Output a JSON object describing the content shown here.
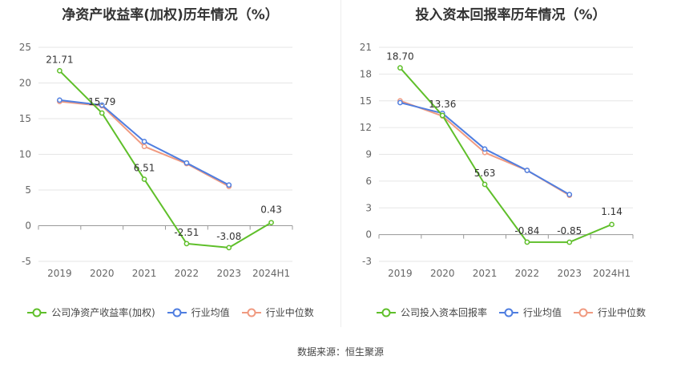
{
  "source": "数据来源：恒生聚源",
  "chart_data": [
    {
      "type": "line",
      "title": "净资产收益率(加权)历年情况（%）",
      "categories": [
        "2019",
        "2020",
        "2021",
        "2022",
        "2023",
        "2024H1"
      ],
      "ylim": [
        -5,
        25
      ],
      "yticks": [
        -5,
        0,
        5,
        10,
        15,
        20,
        25
      ],
      "grid": true,
      "legend_position": "bottom",
      "series": [
        {
          "name": "公司净资产收益率(加权)",
          "color": "#5fbf2a",
          "values": [
            21.71,
            15.79,
            6.51,
            -2.51,
            -3.08,
            0.43
          ],
          "labels": [
            "21.71",
            "15.79",
            "6.51",
            "-2.51",
            "-3.08",
            "0.43"
          ]
        },
        {
          "name": "行业均值",
          "color": "#4f7ee0",
          "values": [
            17.6,
            16.9,
            11.8,
            8.8,
            5.7,
            null
          ]
        },
        {
          "name": "行业中位数",
          "color": "#f09a80",
          "values": [
            17.4,
            16.8,
            11.1,
            8.7,
            5.5,
            null
          ]
        }
      ]
    },
    {
      "type": "line",
      "title": "投入资本回报率历年情况（%）",
      "categories": [
        "2019",
        "2020",
        "2021",
        "2022",
        "2023",
        "2024H1"
      ],
      "ylim": [
        -3,
        21
      ],
      "yticks": [
        -3,
        0,
        3,
        6,
        9,
        12,
        15,
        18,
        21
      ],
      "grid": true,
      "legend_position": "bottom",
      "series": [
        {
          "name": "公司投入资本回报率",
          "color": "#5fbf2a",
          "values": [
            18.7,
            13.36,
            5.63,
            -0.84,
            -0.85,
            1.14
          ],
          "labels": [
            "18.70",
            "13.36",
            "5.63",
            "-0.84",
            "-0.85",
            "1.14"
          ]
        },
        {
          "name": "行业均值",
          "color": "#4f7ee0",
          "values": [
            14.8,
            13.6,
            9.6,
            7.2,
            4.5,
            null
          ]
        },
        {
          "name": "行业中位数",
          "color": "#f09a80",
          "values": [
            15.0,
            13.3,
            9.2,
            7.2,
            4.4,
            null
          ]
        }
      ]
    }
  ]
}
